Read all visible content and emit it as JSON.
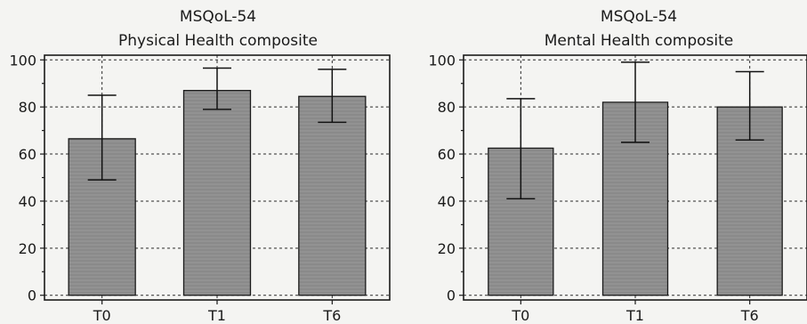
{
  "chart_data": [
    {
      "type": "bar",
      "title": "MSQoL-54",
      "subtitle": "Physical Health composite",
      "categories": [
        "T0",
        "T1",
        "T6"
      ],
      "values": [
        66.5,
        87,
        84.5
      ],
      "error_low": [
        49,
        79,
        73.5
      ],
      "error_high": [
        85,
        96.5,
        96
      ],
      "ylim": [
        -2,
        102
      ],
      "yticks": [
        "0",
        "20",
        "40",
        "60",
        "80",
        "100"
      ],
      "grid": true,
      "bar_color": "#8a8a8a"
    },
    {
      "type": "bar",
      "title": "MSQoL-54",
      "subtitle": "Mental Health composite",
      "categories": [
        "T0",
        "T1",
        "T6"
      ],
      "values": [
        62.5,
        82,
        80
      ],
      "error_low": [
        41,
        65,
        66
      ],
      "error_high": [
        83.5,
        99,
        95
      ],
      "ylim": [
        -2,
        102
      ],
      "yticks": [
        "0",
        "20",
        "40",
        "60",
        "80",
        "100"
      ],
      "grid": true,
      "bar_color": "#8a8a8a"
    }
  ]
}
